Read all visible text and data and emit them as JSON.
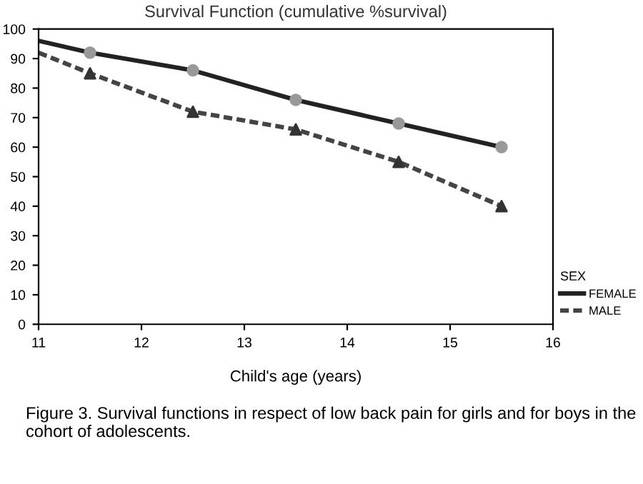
{
  "chart_data": {
    "type": "line",
    "title": "Survival Function (cumulative %survival)",
    "xlabel": "Child's age (years)",
    "legend_title": "SEX",
    "legend": "right",
    "series": [
      {
        "name": "FEMALE",
        "color": "#222222",
        "line_style": "solid",
        "marker": "none",
        "x": [
          11,
          11.5,
          12.5,
          13.5,
          14.5,
          15.5
        ],
        "values": [
          96,
          92,
          86,
          76,
          68,
          60
        ]
      },
      {
        "type": "scatter",
        "color": "#999999",
        "marker": "circle",
        "x": [
          11.5,
          12.5,
          13.5,
          14.5,
          15.5
        ],
        "values": [
          92,
          86,
          76,
          68,
          60
        ]
      },
      {
        "name": "MALE",
        "color": "#444444",
        "line_style": "dashed",
        "marker": "none",
        "x": [
          11,
          11.5,
          12.5,
          13.5,
          14.5,
          15.5
        ],
        "values": [
          92,
          85,
          72,
          66,
          55,
          40
        ]
      },
      {
        "type": "scatter",
        "color": "#333333",
        "marker": "triangle",
        "x": [
          11.5,
          12.5,
          13.5,
          14.5,
          15.5
        ],
        "values": [
          85,
          72,
          66,
          55,
          40
        ]
      }
    ],
    "xlim": [
      11,
      16
    ],
    "xticks": [
      11,
      12,
      13,
      14,
      15,
      16
    ],
    "ylim": [
      0,
      100
    ],
    "yticks": [
      0,
      10,
      20,
      30,
      40,
      50,
      60,
      70,
      80,
      90,
      100
    ],
    "grid": false,
    "annotations": [
      "Figure 3. Survival functions in respect of low back pain for girls and for boys in the cohort of adolescents."
    ]
  }
}
